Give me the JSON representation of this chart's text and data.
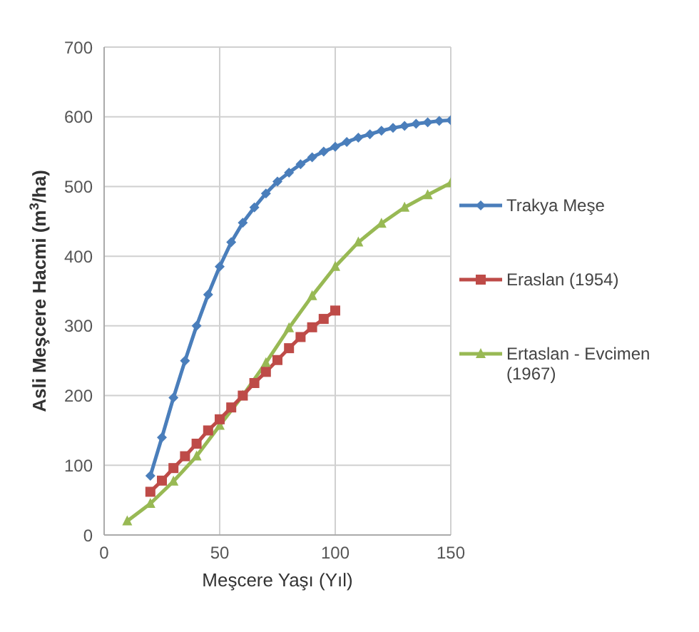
{
  "chart_data": {
    "type": "line",
    "xlabel": "Meşcere Yaşı (Yıl)",
    "ylabel": "Asli Meşcere Hacmi (m$^{3}$/ha)",
    "xlim": [
      0,
      150
    ],
    "xticks": [
      0,
      50,
      100,
      150
    ],
    "ylim": [
      0,
      700
    ],
    "yticks": [
      0,
      100,
      200,
      300,
      400,
      500,
      600,
      700
    ],
    "grid": true,
    "legend": "right",
    "line_style": "solid",
    "series": [
      {
        "name": "Trakya Meşe",
        "color": "#4a7ebb",
        "marker": "diamond",
        "x": [
          20,
          25,
          30,
          35,
          40,
          45,
          50,
          55,
          60,
          65,
          70,
          75,
          80,
          85,
          90,
          95,
          100,
          105,
          110,
          115,
          120,
          125,
          130,
          135,
          140,
          145,
          150
        ],
        "values": [
          85,
          140,
          197,
          250,
          300,
          345,
          385,
          420,
          448,
          470,
          490,
          507,
          520,
          532,
          542,
          550,
          557,
          564,
          570,
          575,
          580,
          584,
          587,
          590,
          592,
          594,
          595
        ]
      },
      {
        "name": "Eraslan (1954)",
        "color": "#be4b48",
        "marker": "square",
        "x": [
          20,
          25,
          30,
          35,
          40,
          45,
          50,
          55,
          60,
          65,
          70,
          75,
          80,
          85,
          90,
          95,
          100
        ],
        "values": [
          62,
          78,
          96,
          113,
          131,
          150,
          166,
          183,
          200,
          218,
          234,
          251,
          268,
          284,
          298,
          310,
          322
        ]
      },
      {
        "name": "Ertaslan - Evcimen (1967)",
        "color": "#98b954",
        "marker": "triangle",
        "x": [
          10,
          20,
          30,
          40,
          50,
          60,
          70,
          80,
          90,
          100,
          110,
          120,
          130,
          140,
          150
        ],
        "values": [
          20,
          45,
          77,
          113,
          157,
          200,
          247,
          297,
          343,
          385,
          420,
          447,
          470,
          488,
          505
        ]
      }
    ]
  }
}
